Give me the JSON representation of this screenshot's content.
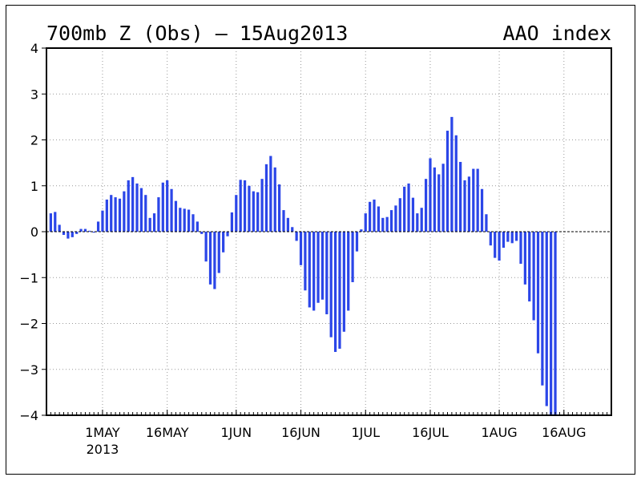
{
  "chart_data": {
    "type": "bar",
    "title_left": "700mb Z (Obs) – 15Aug2013",
    "title_right": "AAO index",
    "ylim": [
      -4,
      4
    ],
    "yticks": [
      -4,
      -3,
      -2,
      -1,
      0,
      1,
      2,
      3,
      4
    ],
    "grid": true,
    "bar_color": "#2b46e8",
    "x_start_date": "2013-04-18",
    "x_end_date": "2013-08-27",
    "xticks": [
      {
        "date": "2013-05-01",
        "label": "1MAY",
        "sublabel": "2013"
      },
      {
        "date": "2013-05-16",
        "label": "16MAY",
        "sublabel": ""
      },
      {
        "date": "2013-06-01",
        "label": "1JUN",
        "sublabel": ""
      },
      {
        "date": "2013-06-16",
        "label": "16JUN",
        "sublabel": ""
      },
      {
        "date": "2013-07-01",
        "label": "1JUL",
        "sublabel": ""
      },
      {
        "date": "2013-07-16",
        "label": "16JUL",
        "sublabel": ""
      },
      {
        "date": "2013-08-01",
        "label": "1AUG",
        "sublabel": ""
      },
      {
        "date": "2013-08-16",
        "label": "16AUG",
        "sublabel": ""
      }
    ],
    "series_start_date": "2013-04-19",
    "values": [
      0.4,
      0.43,
      0.15,
      -0.07,
      -0.15,
      -0.12,
      -0.05,
      0.06,
      0.06,
      0.02,
      -0.02,
      0.22,
      0.46,
      0.7,
      0.8,
      0.75,
      0.72,
      0.88,
      1.12,
      1.19,
      1.05,
      0.95,
      0.8,
      0.3,
      0.4,
      0.75,
      1.07,
      1.12,
      0.93,
      0.67,
      0.52,
      0.5,
      0.48,
      0.38,
      0.22,
      -0.05,
      -0.65,
      -1.15,
      -1.25,
      -0.9,
      -0.45,
      -0.1,
      0.42,
      0.8,
      1.13,
      1.12,
      1.0,
      0.88,
      0.86,
      1.15,
      1.47,
      1.65,
      1.4,
      1.03,
      0.47,
      0.3,
      0.1,
      -0.2,
      -0.73,
      -1.28,
      -1.65,
      -1.72,
      -1.55,
      -1.48,
      -1.8,
      -2.3,
      -2.62,
      -2.55,
      -2.18,
      -1.72,
      -1.1,
      -0.43,
      0.05,
      0.4,
      0.65,
      0.7,
      0.55,
      0.3,
      0.32,
      0.47,
      0.57,
      0.73,
      0.98,
      1.05,
      0.74,
      0.4,
      0.52,
      1.15,
      1.6,
      1.4,
      1.25,
      1.48,
      2.2,
      2.5,
      2.1,
      1.52,
      1.12,
      1.2,
      1.37,
      1.37,
      0.93,
      0.38,
      -0.3,
      -0.57,
      -0.63,
      -0.35,
      -0.22,
      -0.25,
      -0.2,
      -0.7,
      -1.15,
      -1.52,
      -1.93,
      -2.65,
      -3.35,
      -3.8,
      -4.0,
      -4.0
    ]
  }
}
